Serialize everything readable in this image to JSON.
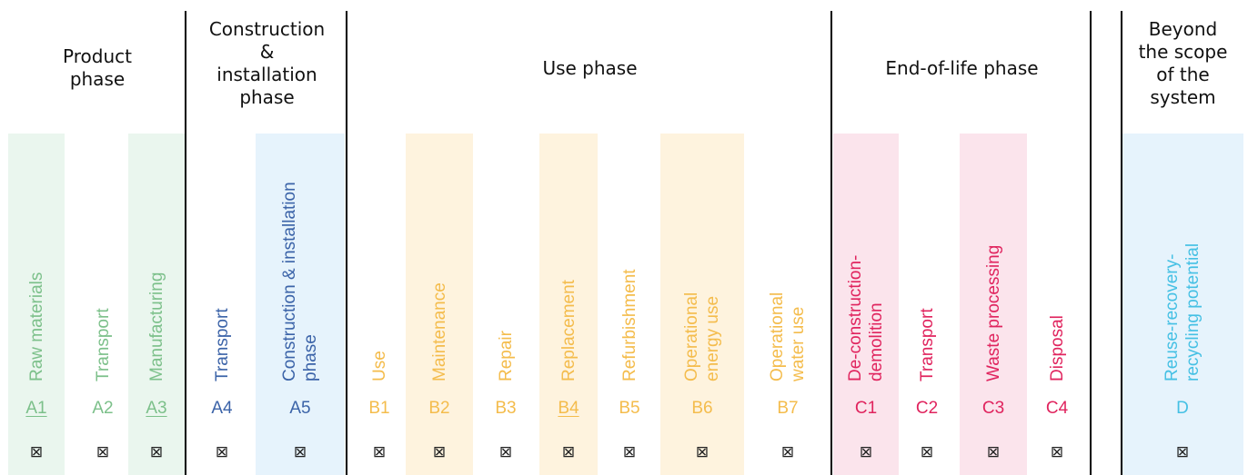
{
  "colors": {
    "product_text": "#7cc08a",
    "product_bg": "#eaf6ee",
    "construction_text": "#3b63a8",
    "construction_bg": "#e6f3fc",
    "use_text": "#f4bc4c",
    "use_bg": "#fef3de",
    "eol_text": "#e0245e",
    "eol_bg": "#fbe4ec",
    "beyond_text": "#45c0e4",
    "beyond_bg": "#e6f3fc"
  },
  "phases": [
    {
      "id": "product",
      "title": "Product\nphase"
    },
    {
      "id": "construction",
      "title": "Construction\n&\ninstallation\nphase"
    },
    {
      "id": "use",
      "title": "Use phase"
    },
    {
      "id": "eol",
      "title": "End-of-life phase"
    },
    {
      "id": "beyond",
      "title": "Beyond\nthe scope\nof the\nsystem"
    }
  ],
  "checkbox_symbol": "⊠",
  "modules": [
    {
      "code": "A1",
      "label": [
        "Raw materials"
      ],
      "phase": "product",
      "shaded": true,
      "underline": true
    },
    {
      "code": "A2",
      "label": [
        "Transport"
      ],
      "phase": "product",
      "shaded": false,
      "underline": false
    },
    {
      "code": "A3",
      "label": [
        "Manufacturing"
      ],
      "phase": "product",
      "shaded": true,
      "underline": true
    },
    {
      "code": "A4",
      "label": [
        "Transport"
      ],
      "phase": "construction",
      "shaded": false,
      "underline": false
    },
    {
      "code": "A5",
      "label": [
        "Construction & installation",
        "phase"
      ],
      "phase": "construction",
      "shaded": true,
      "underline": false
    },
    {
      "code": "B1",
      "label": [
        "Use"
      ],
      "phase": "use",
      "shaded": false,
      "underline": false
    },
    {
      "code": "B2",
      "label": [
        "Maintenance"
      ],
      "phase": "use",
      "shaded": true,
      "underline": false
    },
    {
      "code": "B3",
      "label": [
        "Repair"
      ],
      "phase": "use",
      "shaded": false,
      "underline": false
    },
    {
      "code": "B4",
      "label": [
        "Replacement"
      ],
      "phase": "use",
      "shaded": true,
      "underline": true
    },
    {
      "code": "B5",
      "label": [
        "Refurbishment"
      ],
      "phase": "use",
      "shaded": false,
      "underline": false
    },
    {
      "code": "B6",
      "label": [
        "Operational",
        "energy use"
      ],
      "phase": "use",
      "shaded": true,
      "underline": false
    },
    {
      "code": "B7",
      "label": [
        "Operational",
        "water use"
      ],
      "phase": "use",
      "shaded": false,
      "underline": false
    },
    {
      "code": "C1",
      "label": [
        "De-construction-",
        "demolition"
      ],
      "phase": "eol",
      "shaded": true,
      "underline": false
    },
    {
      "code": "C2",
      "label": [
        "Transport"
      ],
      "phase": "eol",
      "shaded": false,
      "underline": false
    },
    {
      "code": "C3",
      "label": [
        "Waste processing"
      ],
      "phase": "eol",
      "shaded": true,
      "underline": false
    },
    {
      "code": "C4",
      "label": [
        "Disposal"
      ],
      "phase": "eol",
      "shaded": false,
      "underline": false
    },
    {
      "code": "D",
      "label": [
        "Reuse-recovery-",
        "recycling potential"
      ],
      "phase": "beyond",
      "shaded": true,
      "underline": false
    }
  ]
}
